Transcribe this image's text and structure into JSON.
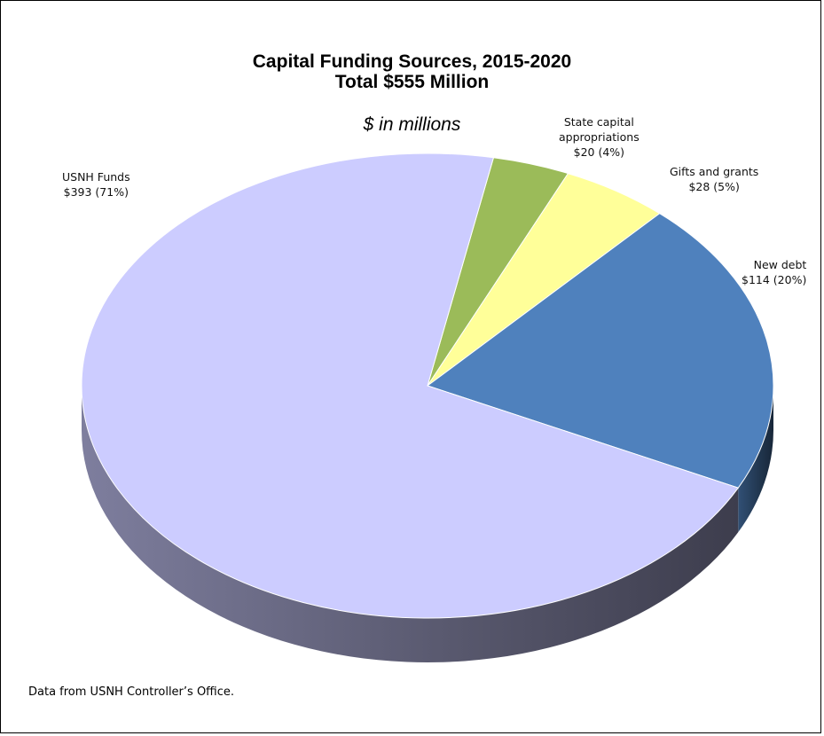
{
  "chart_data": {
    "type": "pie",
    "title": "Capital Funding Sources, 2015-2020",
    "subtitle": "Total $555 Million",
    "unit_note": "$ in millions",
    "slices": [
      {
        "label": "USNH Funds",
        "value": 393,
        "value_text": "$393 (71%)",
        "color": "#CCCCFF"
      },
      {
        "label": "State capital appropriations",
        "label_lines": [
          "State capital",
          "appropriations"
        ],
        "value": 20,
        "value_text": "$20 (4%)",
        "color": "#9BBB59"
      },
      {
        "label": "Gifts and grants",
        "value": 28,
        "value_text": "$28 (5%)",
        "color": "#FFFF99"
      },
      {
        "label": "New debt",
        "value": 114,
        "value_text": "$114 (20%)",
        "color": "#4F81BD"
      }
    ]
  },
  "footer": {
    "source": "Data from USNH Controller’s Office."
  }
}
